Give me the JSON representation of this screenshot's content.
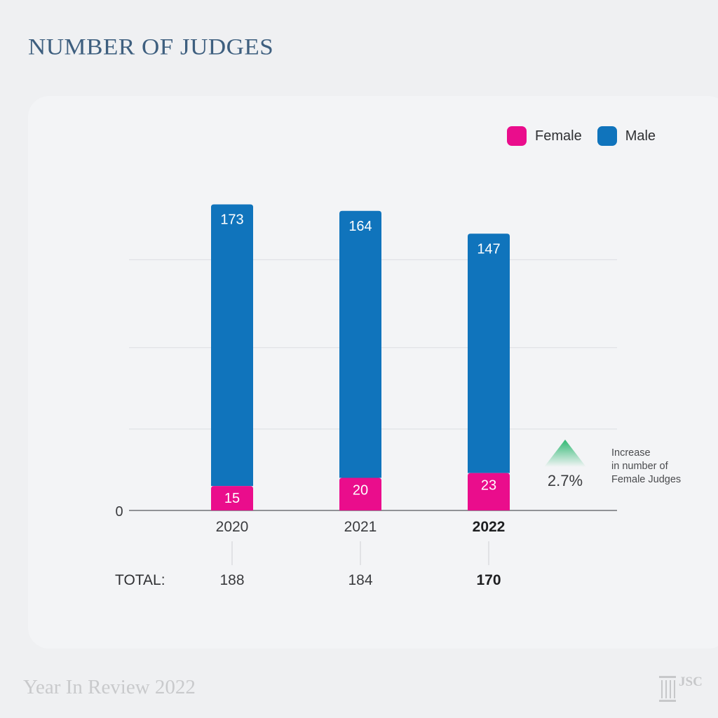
{
  "page": {
    "title": "NUMBER OF JUDGES",
    "footer": "Year In Review 2022",
    "logo_text": "JSC"
  },
  "legend": {
    "female_label": "Female",
    "male_label": "Male"
  },
  "colors": {
    "female": "#ea0d8c",
    "male": "#1074bc",
    "increase_arrow": "#2eb872"
  },
  "chart_data": {
    "type": "bar",
    "stacked": true,
    "categories": [
      "2020",
      "2021",
      "2022"
    ],
    "series": [
      {
        "name": "Female",
        "values": [
          15,
          20,
          23
        ]
      },
      {
        "name": "Male",
        "values": [
          173,
          164,
          147
        ]
      }
    ],
    "totals_label": "TOTAL:",
    "totals": [
      188,
      184,
      170
    ],
    "highlight_category": "2022",
    "y_zero_label": "0",
    "ylim": [
      0,
      190
    ],
    "grid": true,
    "legend_position": "top-right",
    "annotation": {
      "value": "2.7%",
      "text_lines": [
        "Increase",
        "in number of",
        "Female Judges"
      ],
      "icon": "up-triangle-icon"
    }
  }
}
